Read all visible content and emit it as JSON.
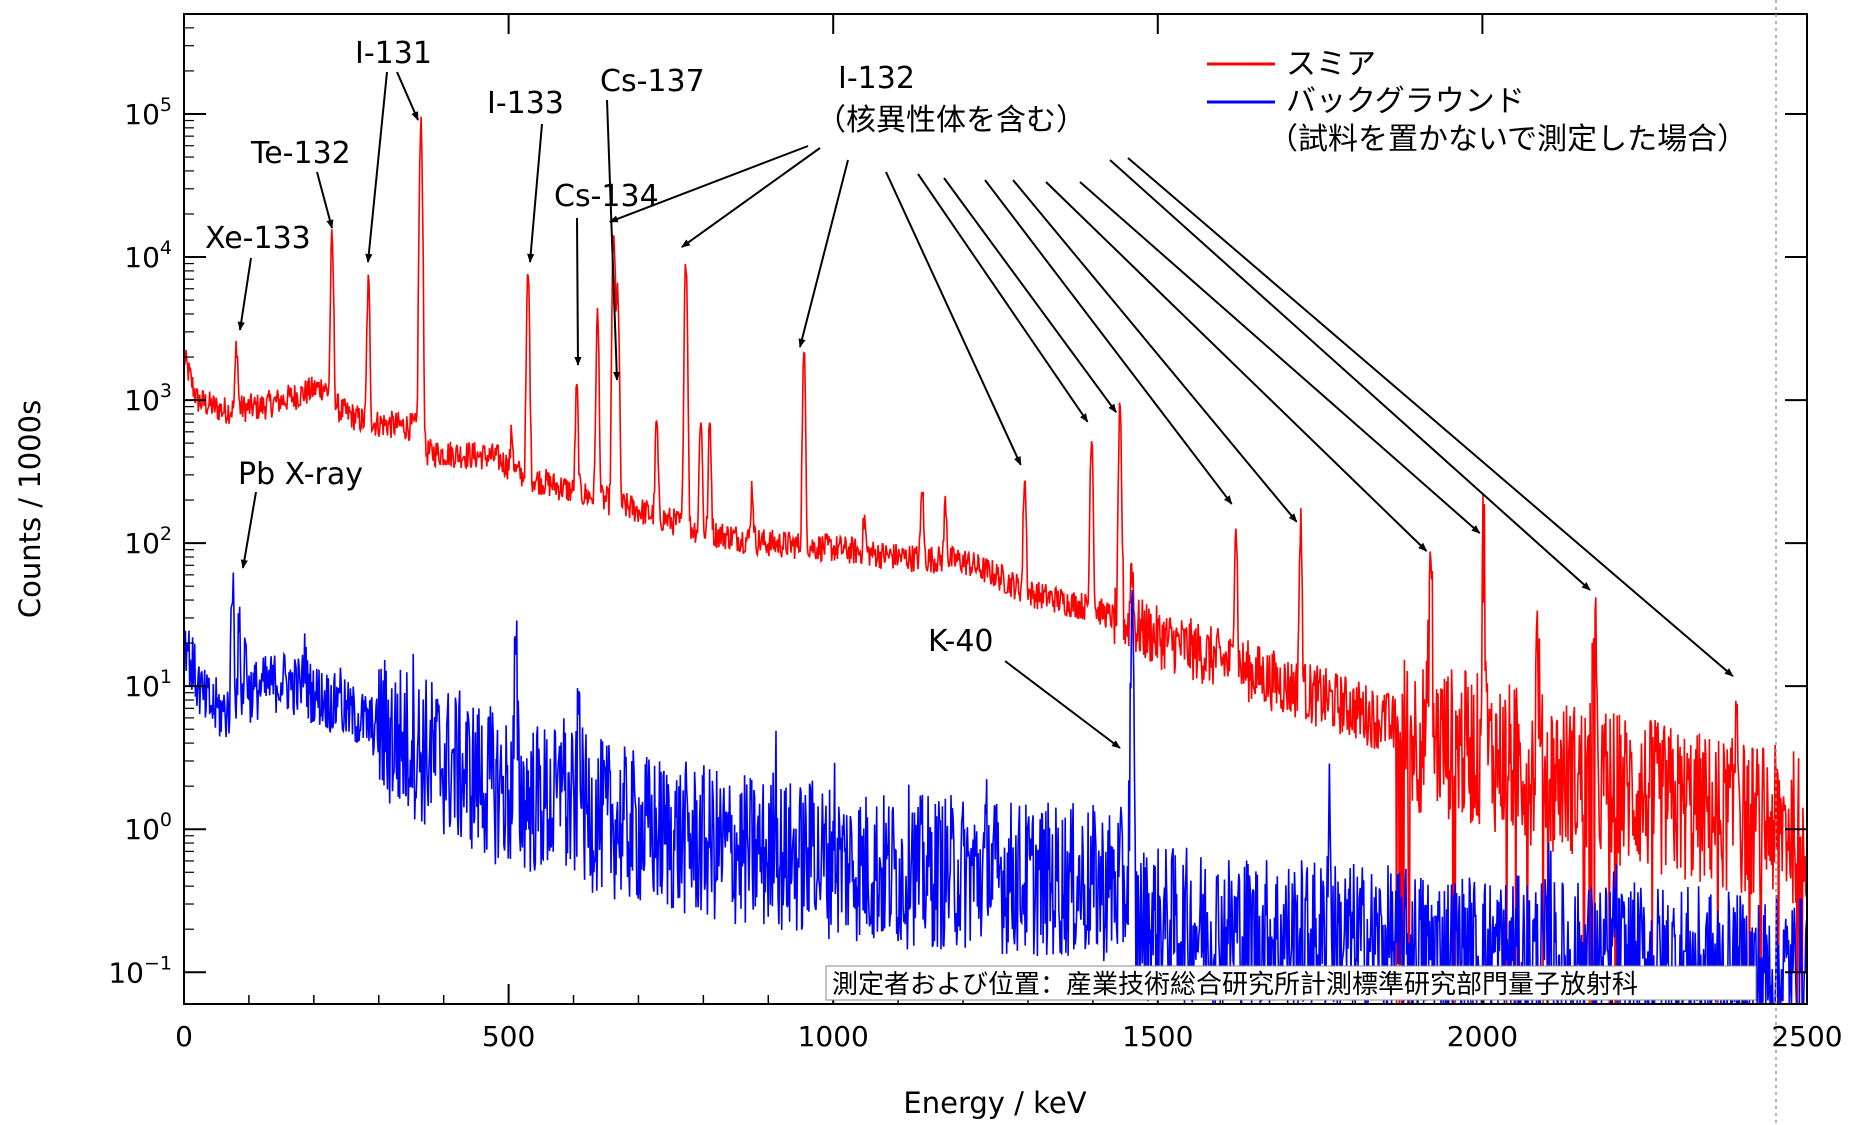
{
  "chart_data": {
    "type": "line",
    "xlabel": "Energy / keV",
    "ylabel": "Counts / 1000s",
    "xlim": [
      0,
      2500
    ],
    "ylim": [
      0.06,
      500000
    ],
    "yscale": "log",
    "x_ticks": [
      0,
      500,
      1000,
      1500,
      2000,
      2500
    ],
    "y_tick_labels": [
      {
        "value": 0.1,
        "base": "10",
        "exp": "−1"
      },
      {
        "value": 1,
        "base": "10",
        "exp": "0"
      },
      {
        "value": 10,
        "base": "10",
        "exp": "1"
      },
      {
        "value": 100,
        "base": "10",
        "exp": "2"
      },
      {
        "value": 1000,
        "base": "10",
        "exp": "3"
      },
      {
        "value": 10000,
        "base": "10",
        "exp": "4"
      },
      {
        "value": 100000,
        "base": "10",
        "exp": "5"
      }
    ],
    "grid": false,
    "legend_position": "top-right",
    "series": [
      {
        "name": "スミア",
        "color": "#ff0000",
        "continuum": [
          [
            0,
            2000
          ],
          [
            20,
            1000
          ],
          [
            60,
            850
          ],
          [
            120,
            900
          ],
          [
            180,
            1100
          ],
          [
            215,
            1250
          ],
          [
            240,
            850
          ],
          [
            280,
            700
          ],
          [
            350,
            650
          ],
          [
            364,
            650
          ],
          [
            372,
            430
          ],
          [
            420,
            420
          ],
          [
            480,
            400
          ],
          [
            520,
            300
          ],
          [
            600,
            230
          ],
          [
            700,
            170
          ],
          [
            800,
            120
          ],
          [
            900,
            100
          ],
          [
            1000,
            92
          ],
          [
            1100,
            80
          ],
          [
            1200,
            75
          ],
          [
            1250,
            60
          ],
          [
            1300,
            45
          ],
          [
            1400,
            35
          ],
          [
            1500,
            22
          ],
          [
            1600,
            15
          ],
          [
            1700,
            10
          ],
          [
            1800,
            7
          ],
          [
            1900,
            4.5
          ],
          [
            2000,
            3.5
          ],
          [
            2100,
            2.5
          ],
          [
            2200,
            2
          ],
          [
            2300,
            1.5
          ],
          [
            2400,
            1.2
          ],
          [
            2500,
            1
          ]
        ],
        "peaks": [
          {
            "x": 81,
            "y": 2500
          },
          {
            "x": 228,
            "y": 13000
          },
          {
            "x": 284,
            "y": 6500
          },
          {
            "x": 365,
            "y": 80000
          },
          {
            "x": 505,
            "y": 600
          },
          {
            "x": 530,
            "y": 7500
          },
          {
            "x": 605,
            "y": 1200
          },
          {
            "x": 637,
            "y": 3800
          },
          {
            "x": 662,
            "y": 15000
          },
          {
            "x": 668,
            "y": 6000
          },
          {
            "x": 728,
            "y": 700
          },
          {
            "x": 773,
            "y": 10000
          },
          {
            "x": 796,
            "y": 800
          },
          {
            "x": 810,
            "y": 700
          },
          {
            "x": 875,
            "y": 250
          },
          {
            "x": 955,
            "y": 2000
          },
          {
            "x": 1048,
            "y": 150
          },
          {
            "x": 1137,
            "y": 250
          },
          {
            "x": 1173,
            "y": 200
          },
          {
            "x": 1295,
            "y": 300
          },
          {
            "x": 1398,
            "y": 600
          },
          {
            "x": 1442,
            "y": 700
          },
          {
            "x": 1460,
            "y": 80
          },
          {
            "x": 1620,
            "y": 160
          },
          {
            "x": 1720,
            "y": 120
          },
          {
            "x": 1920,
            "y": 75
          },
          {
            "x": 2002,
            "y": 100
          },
          {
            "x": 2085,
            "y": 20
          },
          {
            "x": 2172,
            "y": 40
          },
          {
            "x": 2392,
            "y": 10
          }
        ]
      },
      {
        "name": "バックグラウンド",
        "color": "#0000ff",
        "continuum": [
          [
            0,
            25
          ],
          [
            10,
            15
          ],
          [
            30,
            8
          ],
          [
            60,
            6.5
          ],
          [
            100,
            9
          ],
          [
            150,
            11
          ],
          [
            200,
            9
          ],
          [
            300,
            5
          ],
          [
            400,
            3
          ],
          [
            500,
            1.8
          ],
          [
            600,
            1.4
          ],
          [
            700,
            1
          ],
          [
            800,
            0.8
          ],
          [
            900,
            0.65
          ],
          [
            1000,
            0.6
          ],
          [
            1100,
            0.5
          ],
          [
            1200,
            0.5
          ],
          [
            1300,
            0.45
          ],
          [
            1400,
            0.42
          ],
          [
            1455,
            0.4
          ],
          [
            1465,
            0.22
          ],
          [
            1500,
            0.22
          ],
          [
            1600,
            0.2
          ],
          [
            1700,
            0.18
          ],
          [
            1800,
            0.17
          ],
          [
            1900,
            0.15
          ],
          [
            2000,
            0.14
          ],
          [
            2100,
            0.13
          ],
          [
            2200,
            0.12
          ],
          [
            2300,
            0.12
          ],
          [
            2400,
            0.1
          ],
          [
            2500,
            0.1
          ]
        ],
        "peaks": [
          {
            "x": 75,
            "y": 55
          },
          {
            "x": 85,
            "y": 25
          },
          {
            "x": 95,
            "y": 20
          },
          {
            "x": 186,
            "y": 18
          },
          {
            "x": 239,
            "y": 12
          },
          {
            "x": 352,
            "y": 6
          },
          {
            "x": 511,
            "y": 13
          },
          {
            "x": 583,
            "y": 5
          },
          {
            "x": 609,
            "y": 8
          },
          {
            "x": 911,
            "y": 2.5
          },
          {
            "x": 969,
            "y": 1.5
          },
          {
            "x": 1001,
            "y": 1.2
          },
          {
            "x": 1120,
            "y": 1.2
          },
          {
            "x": 1238,
            "y": 0.9
          },
          {
            "x": 1460,
            "y": 20
          },
          {
            "x": 1764,
            "y": 1.5
          },
          {
            "x": 2104,
            "y": 0.35
          },
          {
            "x": 2204,
            "y": 0.3
          }
        ]
      }
    ],
    "annotations": [
      {
        "label": "Xe-133",
        "target": [
          81,
          2500
        ]
      },
      {
        "label": "Te-132",
        "target": [
          228,
          13000
        ]
      },
      {
        "label": "I-131",
        "targets": [
          [
            284,
            6500
          ],
          [
            365,
            80000
          ]
        ]
      },
      {
        "label": "I-133",
        "target": [
          530,
          7500
        ]
      },
      {
        "label": "Cs-134",
        "target": [
          605,
          1200
        ]
      },
      {
        "label": "Cs-137",
        "target": [
          662,
          15000
        ]
      },
      {
        "label": "I-132",
        "label2": "（核異性体を含む）"
      },
      {
        "label": "Pb X-ray",
        "target": [
          75,
          55
        ]
      },
      {
        "label": "K-40",
        "target": [
          1460,
          20
        ]
      }
    ],
    "legend": {
      "lines": [
        "スミア",
        "バックグラウンド",
        "（試料を置かないで測定した場合）"
      ]
    },
    "credit": "測定者および位置：産業技術総合研究所計測標準研究部門量子放射科"
  }
}
